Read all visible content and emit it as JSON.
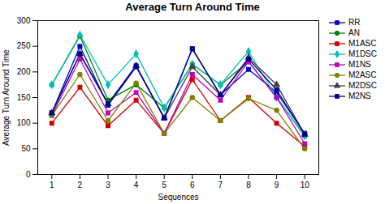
{
  "chart_data": {
    "type": "line",
    "title": "Average Turn Around Time",
    "xlabel": "Sequences",
    "ylabel": "Average Turn Around Time",
    "x": [
      1,
      2,
      3,
      4,
      5,
      6,
      7,
      8,
      9,
      10
    ],
    "xlim": [
      0.5,
      10.5
    ],
    "ylim": [
      0,
      300
    ],
    "xticks": [
      1,
      2,
      3,
      4,
      5,
      6,
      7,
      8,
      9,
      10
    ],
    "yticks": [
      0,
      50,
      100,
      150,
      200,
      250,
      300
    ],
    "grid": false,
    "legend": "upper right",
    "series": [
      {
        "name": "RR",
        "color": "#0000cd",
        "marker": "square",
        "values": [
          120,
          250,
          135,
          210,
          110,
          245,
          155,
          205,
          160,
          80
        ]
      },
      {
        "name": "AN",
        "color": "#007f00",
        "marker": "circle",
        "values": [
          175,
          270,
          145,
          175,
          130,
          215,
          175,
          220,
          150,
          75
        ]
      },
      {
        "name": "M1ASC",
        "color": "#cc0000",
        "marker": "square",
        "values": [
          100,
          170,
          95,
          145,
          80,
          185,
          105,
          150,
          100,
          55
        ]
      },
      {
        "name": "M1DSC",
        "color": "#00bfbf",
        "marker": "diamond",
        "values": [
          175,
          272,
          175,
          235,
          130,
          215,
          175,
          240,
          150,
          75
        ]
      },
      {
        "name": "M1NS",
        "color": "#bf00bf",
        "marker": "square",
        "values": [
          115,
          225,
          120,
          160,
          80,
          195,
          145,
          220,
          150,
          60
        ]
      },
      {
        "name": "M2ASC",
        "color": "#808000",
        "marker": "circle",
        "values": [
          115,
          195,
          105,
          178,
          80,
          150,
          105,
          148,
          125,
          50
        ]
      },
      {
        "name": "M2DSC",
        "color": "#404040",
        "marker": "triangle",
        "values": [
          120,
          235,
          138,
          212,
          110,
          210,
          155,
          228,
          175,
          78
        ]
      },
      {
        "name": "M2NS",
        "color": "#00008b",
        "marker": "square",
        "values": [
          120,
          235,
          138,
          212,
          110,
          245,
          155,
          225,
          165,
          78
        ]
      }
    ]
  }
}
